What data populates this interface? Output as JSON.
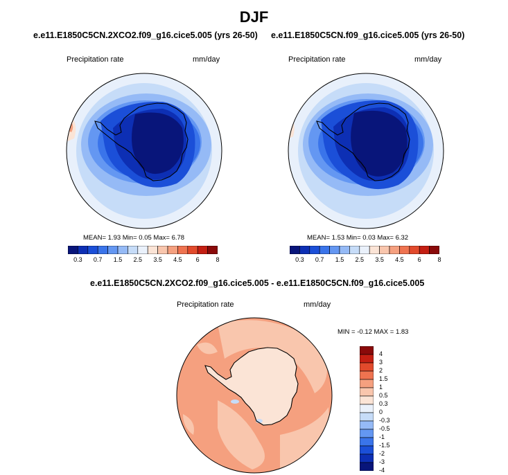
{
  "page": {
    "title": "DJF"
  },
  "panels": [
    {
      "title": "e.e11.E1850C5CN.2XCO2.f09_g16.cice5.005 (yrs 26-50)",
      "variable": "Precipitation rate",
      "units": "mm/day",
      "stats": {
        "mean_label": "MEAN=",
        "mean": "1.93",
        "min_label": "Min=",
        "min": "0.05",
        "max_label": "Max=",
        "max": "6.78"
      }
    },
    {
      "title": "e.e11.E1850C5CN.f09_g16.cice5.005 (yrs 26-50)",
      "variable": "Precipitation rate",
      "units": "mm/day",
      "stats": {
        "mean_label": "MEAN=",
        "mean": "1.53",
        "min_label": "Min=",
        "min": "0.03",
        "max_label": "Max=",
        "max": "6.32"
      }
    }
  ],
  "diff_panel": {
    "title": "e.e11.E1850C5CN.2XCO2.f09_g16.cice5.005 - e.e11.E1850C5CN.f09_g16.cice5.005",
    "variable": "Precipitation rate",
    "units": "mm/day",
    "stats": {
      "min_label": "MIN =",
      "min": "-0.12",
      "max_label": "MAX =",
      "max": "1.83"
    }
  },
  "colors": {
    "abs_scale": [
      "#08157a",
      "#0d2fb4",
      "#1b4fd8",
      "#3a74ea",
      "#6497f2",
      "#95baf6",
      "#c6dcf8",
      "#eaf1fb",
      "#fbe4d6",
      "#f9c6ad",
      "#f5a07f",
      "#ef7350",
      "#e24a2c",
      "#c41f13",
      "#8a0a0a"
    ],
    "diff_scale": [
      "#08157a",
      "#0d2fb4",
      "#1b4fd8",
      "#3a74ea",
      "#6497f2",
      "#95baf6",
      "#c6dcf8",
      "#eaf1fb",
      "#fbe4d6",
      "#f9c6ad",
      "#f5a07f",
      "#ef7350",
      "#e24a2c",
      "#c41f13",
      "#8a0a0a"
    ]
  },
  "chart_data": [
    {
      "type": "heatmap",
      "projection": "south-polar-stereographic",
      "title": "e.e11.E1850C5CN.2XCO2.f09_g16.cice5.005 (yrs 26-50)",
      "variable": "Precipitation rate",
      "units": "mm/day",
      "mean": 1.93,
      "min": 0.05,
      "max": 6.78,
      "colorbar_levels": [
        0.2,
        0.3,
        0.5,
        0.7,
        1,
        1.5,
        2,
        2.5,
        3,
        3.5,
        4,
        4.5,
        5,
        6,
        7,
        8
      ],
      "colorbar_tick_labels": [
        "0.3",
        "0.7",
        "1.5",
        "2.5",
        "3.5",
        "4.5",
        "6",
        "8"
      ],
      "legend_position": "bottom"
    },
    {
      "type": "heatmap",
      "projection": "south-polar-stereographic",
      "title": "e.e11.E1850C5CN.f09_g16.cice5.005 (yrs 26-50)",
      "variable": "Precipitation rate",
      "units": "mm/day",
      "mean": 1.53,
      "min": 0.03,
      "max": 6.32,
      "colorbar_levels": [
        0.2,
        0.3,
        0.5,
        0.7,
        1,
        1.5,
        2,
        2.5,
        3,
        3.5,
        4,
        4.5,
        5,
        6,
        7,
        8
      ],
      "colorbar_tick_labels": [
        "0.3",
        "0.7",
        "1.5",
        "2.5",
        "3.5",
        "4.5",
        "6",
        "8"
      ],
      "legend_position": "bottom"
    },
    {
      "type": "heatmap",
      "projection": "south-polar-stereographic",
      "title": "e.e11.E1850C5CN.2XCO2.f09_g16.cice5.005 - e.e11.E1850C5CN.f09_g16.cice5.005",
      "variable": "Precipitation rate",
      "units": "mm/day",
      "min": -0.12,
      "max": 1.83,
      "colorbar_tick_labels": [
        "4",
        "3",
        "2",
        "1.5",
        "1",
        "0.5",
        "0.3",
        "0",
        "-0.3",
        "-0.5",
        "-1",
        "-1.5",
        "-2",
        "-3",
        "-4"
      ],
      "legend_position": "right"
    }
  ]
}
